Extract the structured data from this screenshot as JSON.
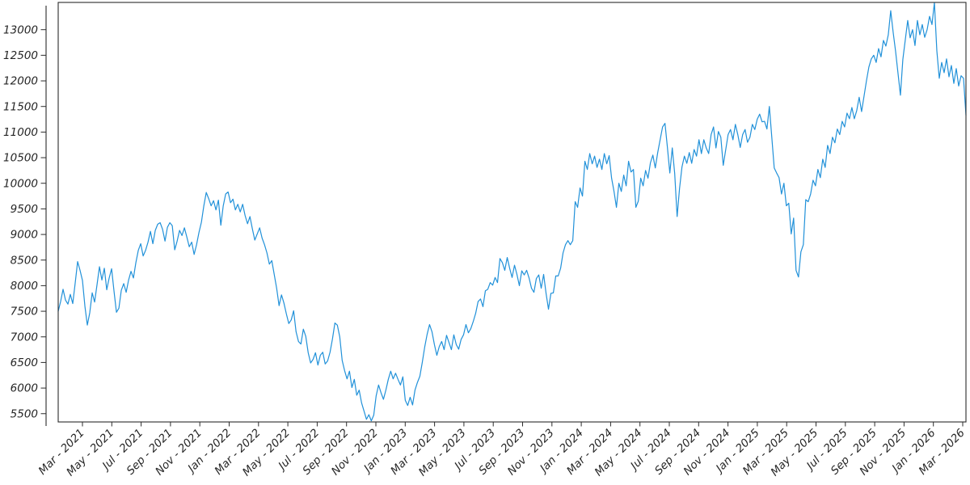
{
  "chart_data": {
    "type": "line",
    "title": "",
    "xlabel": "",
    "ylabel": "",
    "grid": false,
    "legend": null,
    "x_tick_labels": [
      "Mar - 2021",
      "May - 2021",
      "Jul - 2021",
      "Sep - 2021",
      "Nov - 2021",
      "Jan - 2022",
      "Mar - 2022",
      "May - 2022",
      "Jul - 2022",
      "Sep - 2022",
      "Nov - 2022",
      "Jan - 2023",
      "Mar - 2023",
      "May - 2023",
      "Jul - 2023",
      "Sep - 2023",
      "Nov - 2023",
      "Jan - 2024",
      "Mar - 2024",
      "May - 2024",
      "Jul - 2024",
      "Sep - 2024",
      "Nov - 2024",
      "Jan - 2025",
      "Mar - 2025",
      "May - 2025",
      "Jul - 2025",
      "Sep - 2025",
      "Nov - 2025",
      "Jan - 2026",
      "Mar - 2026"
    ],
    "y_tick_labels": [
      5500,
      6000,
      6500,
      7000,
      7500,
      8000,
      8500,
      9000,
      9500,
      10000,
      10500,
      11000,
      11500,
      12000,
      12500,
      13000
    ],
    "x_range": "mid-Jan 2021 to mid-Mar 2026, ticks every 2 months",
    "ylim": [
      5350,
      13530
    ],
    "line_color": "#2191d9",
    "axis_color": "#2b2b2b",
    "series": [
      {
        "name": "index-price",
        "values": [
          7500,
          7690,
          7930,
          7720,
          7640,
          7830,
          7650,
          8050,
          8470,
          8300,
          8100,
          7600,
          7230,
          7470,
          7860,
          7680,
          8020,
          8370,
          8110,
          8340,
          7920,
          8150,
          8330,
          7890,
          7480,
          7560,
          7910,
          8040,
          7870,
          8110,
          8280,
          8150,
          8450,
          8690,
          8820,
          8580,
          8690,
          8850,
          9060,
          8820,
          9080,
          9200,
          9230,
          9100,
          8870,
          9140,
          9230,
          9170,
          8700,
          8870,
          9080,
          8980,
          9130,
          8950,
          8760,
          8850,
          8610,
          8800,
          9040,
          9240,
          9560,
          9820,
          9700,
          9560,
          9660,
          9480,
          9670,
          9180,
          9560,
          9790,
          9830,
          9620,
          9690,
          9480,
          9590,
          9440,
          9590,
          9370,
          9210,
          9350,
          9110,
          8890,
          9010,
          9130,
          8930,
          8800,
          8640,
          8420,
          8490,
          8220,
          7950,
          7610,
          7820,
          7660,
          7450,
          7260,
          7330,
          7510,
          7100,
          6910,
          6860,
          7150,
          7010,
          6690,
          6490,
          6560,
          6690,
          6450,
          6640,
          6700,
          6470,
          6530,
          6700,
          6960,
          7270,
          7230,
          7000,
          6540,
          6340,
          6180,
          6330,
          6010,
          6170,
          5860,
          5960,
          5710,
          5550,
          5390,
          5480,
          5360,
          5470,
          5850,
          6060,
          5910,
          5780,
          5960,
          6170,
          6330,
          6180,
          6290,
          6170,
          6060,
          6220,
          5760,
          5660,
          5820,
          5670,
          5960,
          6110,
          6230,
          6500,
          6800,
          7050,
          7240,
          7100,
          6850,
          6640,
          6810,
          6910,
          6750,
          7030,
          6890,
          6750,
          7040,
          6850,
          6760,
          6950,
          7040,
          7240,
          7080,
          7160,
          7300,
          7460,
          7690,
          7740,
          7590,
          7900,
          7930,
          8060,
          8010,
          8160,
          8060,
          8530,
          8450,
          8300,
          8550,
          8340,
          8160,
          8400,
          8220,
          8000,
          8290,
          8210,
          8300,
          8150,
          7950,
          7870,
          8140,
          8210,
          7950,
          8220,
          7850,
          7540,
          7850,
          7860,
          8190,
          8190,
          8340,
          8640,
          8800,
          8880,
          8800,
          8880,
          9640,
          9530,
          9910,
          9750,
          10430,
          10270,
          10580,
          10380,
          10530,
          10310,
          10470,
          10270,
          10580,
          10380,
          10540,
          10100,
          9840,
          9530,
          10000,
          9840,
          10160,
          9950,
          10430,
          10220,
          10270,
          9530,
          9650,
          10100,
          9950,
          10250,
          10100,
          10400,
          10550,
          10300,
          10600,
          10850,
          11100,
          11170,
          10700,
          10200,
          10690,
          10190,
          9350,
          9900,
          10320,
          10530,
          10390,
          10600,
          10390,
          10660,
          10530,
          10850,
          10580,
          10850,
          10690,
          10580,
          10950,
          11100,
          10690,
          11010,
          10900,
          10350,
          10650,
          10950,
          11050,
          10850,
          11150,
          10950,
          10700,
          10950,
          11050,
          10800,
          10900,
          11150,
          11050,
          11250,
          11350,
          11200,
          11210,
          11060,
          11500,
          10900,
          10300,
          10200,
          10110,
          9790,
          10000,
          9560,
          9610,
          9010,
          9320,
          8300,
          8170,
          8660,
          8800,
          9680,
          9640,
          9790,
          10060,
          9950,
          10270,
          10110,
          10470,
          10310,
          10740,
          10580,
          10900,
          10790,
          11060,
          10950,
          11210,
          11100,
          11370,
          11260,
          11480,
          11260,
          11420,
          11680,
          11400,
          11700,
          12000,
          12270,
          12430,
          12500,
          12360,
          12630,
          12470,
          12790,
          12680,
          12900,
          13370,
          12950,
          12580,
          12150,
          11720,
          12420,
          12800,
          13180,
          12840,
          13000,
          12690,
          13180,
          12900,
          13100,
          12850,
          13000,
          13260,
          13100,
          13530,
          12590,
          12050,
          12360,
          12160,
          12430,
          12080,
          12300,
          11950,
          12240,
          11900,
          12100,
          12050,
          11330
        ]
      }
    ]
  }
}
